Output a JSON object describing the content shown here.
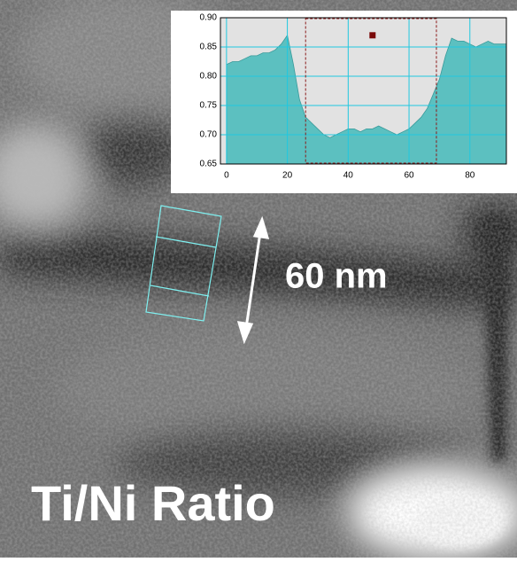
{
  "chart_data": {
    "type": "area",
    "x": [
      0,
      2,
      4,
      6,
      8,
      10,
      12,
      14,
      16,
      18,
      20,
      22,
      24,
      26,
      28,
      30,
      32,
      34,
      36,
      38,
      40,
      42,
      44,
      46,
      48,
      50,
      52,
      54,
      56,
      58,
      60,
      62,
      64,
      66,
      68,
      70,
      72,
      74,
      76,
      78,
      80,
      82,
      84,
      86,
      88,
      90,
      92
    ],
    "values": [
      0.82,
      0.825,
      0.825,
      0.83,
      0.835,
      0.835,
      0.84,
      0.84,
      0.845,
      0.855,
      0.87,
      0.82,
      0.76,
      0.73,
      0.72,
      0.71,
      0.7,
      0.695,
      0.7,
      0.705,
      0.71,
      0.71,
      0.705,
      0.71,
      0.71,
      0.715,
      0.71,
      0.705,
      0.7,
      0.705,
      0.71,
      0.72,
      0.73,
      0.745,
      0.77,
      0.795,
      0.835,
      0.865,
      0.86,
      0.86,
      0.855,
      0.85,
      0.855,
      0.86,
      0.855,
      0.855,
      0.855
    ],
    "color": "#5cc0c0",
    "xlim": [
      -2,
      92
    ],
    "xticks": [
      0,
      20,
      40,
      60,
      80
    ],
    "ylim": [
      0.65,
      0.9
    ],
    "yticks": [
      {
        "value": 0.65,
        "label": "0.65"
      },
      {
        "value": 0.7,
        "label": "0.70"
      },
      {
        "value": 0.75,
        "label": "0.75"
      },
      {
        "value": 0.8,
        "label": "0.80"
      },
      {
        "value": 0.85,
        "label": "0.85"
      },
      {
        "value": 0.9,
        "label": "0.90"
      }
    ],
    "grid": true,
    "grid_color": "#20c8e0",
    "selection_xlim": [
      26,
      69
    ],
    "marker": {
      "x": 48,
      "y": 0.87
    }
  },
  "annotations": {
    "scale": "60 nm",
    "label": "Ti/Ni Ratio"
  }
}
